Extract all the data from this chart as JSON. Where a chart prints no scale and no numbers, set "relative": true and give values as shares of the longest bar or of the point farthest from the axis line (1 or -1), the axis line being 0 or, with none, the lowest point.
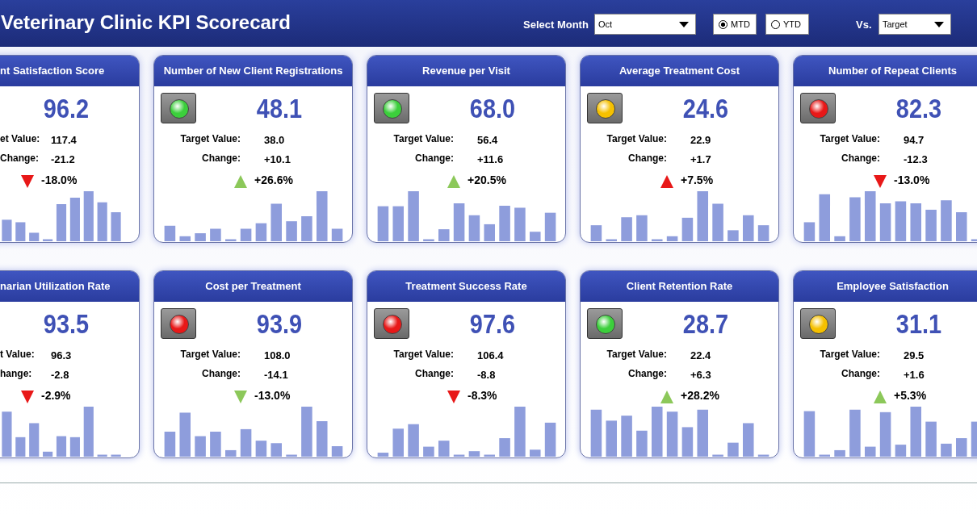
{
  "chart_data": [
    {
      "type": "other",
      "title": "Veterinary Clinic KPI Scorecard",
      "annotations": [
        "Select Month",
        "Oct",
        "MTD",
        "YTD",
        "Vs.",
        "Target"
      ]
    },
    {
      "type": "bar",
      "relative": true,
      "title": "nt Satisfaction Score",
      "annotations": [
        "96.2",
        "et Value:",
        "117.4",
        "Change:",
        "-21.2",
        "-18.0%"
      ],
      "color": "#8e9ddc",
      "categories": [
        null,
        null,
        null,
        null,
        null,
        null,
        null,
        null,
        null
      ],
      "values": [
        0.43,
        0.38,
        0.17,
        0.04,
        0.74,
        0.87,
        1,
        0.78,
        0.58
      ]
    },
    {
      "type": "bar",
      "relative": true,
      "title": "Number of New Client Registrations",
      "annotations": [
        "48.1",
        "Target Value:",
        "38.0",
        "Change:",
        "+10.1",
        "+26.6%"
      ],
      "color": "#8e9ddc",
      "categories": [
        null,
        null,
        null,
        null,
        null,
        null,
        null,
        null,
        null,
        null,
        null,
        null
      ],
      "values": [
        0.31,
        0.1,
        0.16,
        0.25,
        0.04,
        0.25,
        0.36,
        0.75,
        0.4,
        0.5,
        1,
        0.25
      ]
    },
    {
      "type": "bar",
      "relative": true,
      "title": "Revenue per Visit",
      "annotations": [
        "68.0",
        "Target Value:",
        "56.4",
        "Change:",
        "+11.6",
        "+20.5%"
      ],
      "color": "#8e9ddc",
      "categories": [
        null,
        null,
        null,
        null,
        null,
        null,
        null,
        null,
        null,
        null,
        null,
        null
      ],
      "values": [
        0.7,
        0.7,
        1,
        0.04,
        0.24,
        0.76,
        0.52,
        0.34,
        0.71,
        0.67,
        0.19,
        0.57
      ]
    },
    {
      "type": "bar",
      "relative": true,
      "title": "Average Treatment Cost",
      "annotations": [
        "24.6",
        "Target Value:",
        "22.9",
        "Change:",
        "+1.7",
        "+7.5%"
      ],
      "color": "#8e9ddc",
      "categories": [
        null,
        null,
        null,
        null,
        null,
        null,
        null,
        null,
        null,
        null,
        null,
        null
      ],
      "values": [
        0.32,
        0.04,
        0.48,
        0.52,
        0.04,
        0.1,
        0.47,
        1,
        0.75,
        0.22,
        0.52,
        0.32
      ]
    },
    {
      "type": "bar",
      "relative": true,
      "title": "Number of Repeat Clients",
      "annotations": [
        "82.3",
        "Target Value:",
        "94.7",
        "Change:",
        "-12.3",
        "-13.0%"
      ],
      "color": "#8e9ddc",
      "categories": [
        null,
        null,
        null,
        null,
        null,
        null,
        null,
        null,
        null,
        null,
        null,
        null
      ],
      "values": [
        0.38,
        0.94,
        0.1,
        0.88,
        1,
        0.76,
        0.8,
        0.76,
        0.63,
        0.82,
        0.58,
        0.04
      ]
    },
    {
      "type": "bar",
      "relative": true,
      "title": "narian Utilization Rate",
      "annotations": [
        "93.5",
        "t Value:",
        "96.3",
        "hange:",
        "-2.8",
        "-2.9%"
      ],
      "color": "#8e9ddc",
      "categories": [
        null,
        null,
        null,
        null,
        null,
        null,
        null,
        null,
        null
      ],
      "values": [
        0.9,
        0.39,
        0.67,
        0.1,
        0.41,
        0.39,
        1,
        0.04,
        0.04
      ]
    },
    {
      "type": "bar",
      "relative": true,
      "title": "Cost per Treatment",
      "annotations": [
        "93.9",
        "Target Value:",
        "108.0",
        "Change:",
        "-14.1",
        "-13.0%"
      ],
      "color": "#8e9ddc",
      "categories": [
        null,
        null,
        null,
        null,
        null,
        null,
        null,
        null,
        null,
        null,
        null,
        null
      ],
      "values": [
        0.5,
        0.88,
        0.41,
        0.5,
        0.13,
        0.55,
        0.32,
        0.27,
        0.04,
        1,
        0.71,
        0.21
      ]
    },
    {
      "type": "bar",
      "relative": true,
      "title": "Treatment Success Rate",
      "annotations": [
        "97.6",
        "Target Value:",
        "106.4",
        "Change:",
        "-8.8",
        "-8.3%"
      ],
      "color": "#8e9ddc",
      "categories": [
        null,
        null,
        null,
        null,
        null,
        null,
        null,
        null,
        null,
        null,
        null,
        null
      ],
      "values": [
        0.08,
        0.56,
        0.65,
        0.2,
        0.32,
        0.04,
        0.11,
        0.04,
        0.37,
        1,
        0.14,
        0.68
      ]
    },
    {
      "type": "bar",
      "relative": true,
      "title": "Client Retention Rate",
      "annotations": [
        "28.7",
        "Target Value:",
        "22.4",
        "Change:",
        "+6.3",
        "+28.2%"
      ],
      "color": "#8e9ddc",
      "categories": [
        null,
        null,
        null,
        null,
        null,
        null,
        null,
        null,
        null,
        null,
        null,
        null
      ],
      "values": [
        0.94,
        0.72,
        0.82,
        0.52,
        1,
        0.9,
        0.59,
        0.94,
        0.04,
        0.28,
        0.67,
        0.04
      ]
    },
    {
      "type": "bar",
      "relative": true,
      "title": "Employee Satisfaction",
      "annotations": [
        "31.1",
        "Target Value:",
        "29.5",
        "Change:",
        "+1.6",
        "+5.3%"
      ],
      "color": "#8e9ddc",
      "categories": [
        null,
        null,
        null,
        null,
        null,
        null,
        null,
        null,
        null,
        null,
        null,
        null
      ],
      "values": [
        0.91,
        0.04,
        0.13,
        0.94,
        0.2,
        0.89,
        0.24,
        1,
        0.7,
        0.26,
        0.37,
        0.7
      ]
    }
  ]
}
